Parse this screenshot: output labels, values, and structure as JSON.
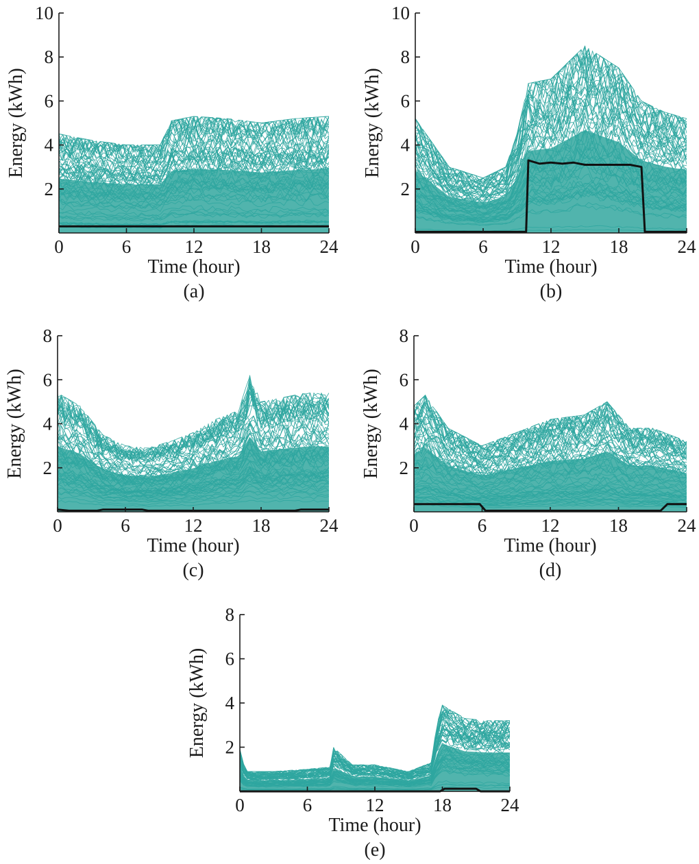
{
  "chart_data": [
    {
      "type": "line",
      "caption": "(a)",
      "xlabel": "Time (hour)",
      "ylabel": "Energy (kWh)",
      "xlim": [
        0,
        24
      ],
      "ylim": [
        0,
        10
      ],
      "xticks": [
        0,
        6,
        12,
        18,
        24
      ],
      "yticks": [
        2,
        4,
        6,
        8,
        10
      ],
      "grid": false,
      "colors": {
        "series_palette": [
          "#2a9a9c",
          "#36b39a",
          "#2e8fb0",
          "#4bb88a"
        ],
        "centroid": "#111111"
      },
      "series_envelope": {
        "x": [
          0,
          3,
          6,
          9,
          10,
          12,
          15,
          18,
          21,
          24
        ],
        "upper": [
          4.5,
          4.2,
          4.0,
          4.0,
          5.1,
          5.3,
          5.2,
          5.0,
          5.2,
          5.3
        ],
        "lower": [
          0,
          0,
          0,
          0,
          0,
          0,
          0,
          0,
          0,
          0
        ]
      },
      "centroid": {
        "x": [
          0,
          24
        ],
        "y": [
          0.3,
          0.3
        ]
      }
    },
    {
      "type": "line",
      "caption": "(b)",
      "xlabel": "Time (hour)",
      "ylabel": "Energy (kWh)",
      "xlim": [
        0,
        24
      ],
      "ylim": [
        0,
        10
      ],
      "xticks": [
        0,
        6,
        12,
        18,
        24
      ],
      "yticks": [
        2,
        4,
        6,
        8,
        10
      ],
      "grid": false,
      "colors": {
        "series_palette": [
          "#2a9a9c",
          "#36b39a",
          "#2e8fb0",
          "#4bb88a"
        ],
        "centroid": "#111111"
      },
      "series_envelope": {
        "x": [
          0,
          3,
          6,
          8,
          9,
          10,
          12,
          15,
          18,
          20,
          22,
          24
        ],
        "upper": [
          5.2,
          3.0,
          2.5,
          3.0,
          4.5,
          6.8,
          7.0,
          8.5,
          7.5,
          6.0,
          5.5,
          5.2
        ],
        "lower": [
          0,
          0,
          0,
          0,
          0,
          0,
          0,
          0,
          0,
          0,
          0,
          0
        ]
      },
      "centroid": {
        "x": [
          0,
          9.8,
          10.0,
          11,
          12,
          13,
          14,
          15,
          16,
          17,
          18,
          19,
          20.0,
          20.3,
          24
        ],
        "y": [
          0.05,
          0.05,
          3.3,
          3.15,
          3.2,
          3.15,
          3.2,
          3.1,
          3.1,
          3.1,
          3.1,
          3.1,
          3.0,
          0.05,
          0.05
        ]
      }
    },
    {
      "type": "line",
      "caption": "(c)",
      "xlabel": "Time (hour)",
      "ylabel": "Energy (kWh)",
      "xlim": [
        0,
        24
      ],
      "ylim": [
        0,
        8
      ],
      "xticks": [
        0,
        6,
        12,
        18,
        24
      ],
      "yticks": [
        2,
        4,
        6,
        8
      ],
      "grid": false,
      "colors": {
        "series_palette": [
          "#2a9a9c",
          "#36b39a",
          "#2e8fb0",
          "#4bb88a"
        ],
        "centroid": "#111111"
      },
      "series_envelope": {
        "x": [
          0,
          2,
          4,
          6,
          8,
          10,
          12,
          14,
          16,
          17,
          18,
          20,
          22,
          24
        ],
        "upper": [
          5.4,
          4.8,
          3.5,
          3.0,
          2.9,
          3.2,
          3.6,
          4.2,
          4.6,
          6.2,
          5.0,
          5.2,
          5.4,
          5.4
        ],
        "lower": [
          0,
          0,
          0,
          0,
          0,
          0,
          0,
          0,
          0,
          0,
          0,
          0,
          0,
          0
        ]
      },
      "centroid": {
        "x": [
          0,
          1,
          3.5,
          4,
          7.5,
          8,
          21,
          21.5,
          24
        ],
        "y": [
          0.1,
          0.05,
          0.05,
          0.1,
          0.1,
          0.05,
          0.05,
          0.1,
          0.1
        ]
      }
    },
    {
      "type": "line",
      "caption": "(d)",
      "xlabel": "Time (hour)",
      "ylabel": "Energy (kWh)",
      "xlim": [
        0,
        24
      ],
      "ylim": [
        0,
        8
      ],
      "xticks": [
        0,
        6,
        12,
        18,
        24
      ],
      "yticks": [
        2,
        4,
        6,
        8
      ],
      "grid": false,
      "colors": {
        "series_palette": [
          "#2a9a9c",
          "#36b39a",
          "#2e8fb0",
          "#4bb88a"
        ],
        "centroid": "#111111"
      },
      "series_envelope": {
        "x": [
          0,
          1,
          3,
          6,
          9,
          12,
          15,
          17,
          19,
          21,
          24
        ],
        "upper": [
          4.8,
          5.3,
          3.8,
          3.0,
          3.6,
          4.2,
          4.4,
          5.0,
          3.8,
          3.8,
          3.2
        ],
        "lower": [
          0,
          0,
          0,
          0,
          0,
          0,
          0,
          0,
          0,
          0,
          0
        ]
      },
      "centroid": {
        "x": [
          0,
          5.8,
          6.3,
          21.7,
          22.3,
          24
        ],
        "y": [
          0.35,
          0.35,
          0.05,
          0.05,
          0.35,
          0.35
        ]
      }
    },
    {
      "type": "line",
      "caption": "(e)",
      "xlabel": "Time (hour)",
      "ylabel": "Energy (kWh)",
      "xlim": [
        0,
        24
      ],
      "ylim": [
        0,
        8
      ],
      "xticks": [
        0,
        6,
        12,
        18,
        24
      ],
      "yticks": [
        2,
        4,
        6,
        8
      ],
      "grid": false,
      "colors": {
        "series_palette": [
          "#2a9a9c",
          "#36b39a",
          "#2e8fb0",
          "#4bb88a"
        ],
        "centroid": "#111111"
      },
      "series_envelope": {
        "x": [
          0,
          0.5,
          3,
          6,
          8,
          8.3,
          10,
          12,
          15,
          17,
          17.5,
          18,
          20,
          22,
          24
        ],
        "upper": [
          1.9,
          0.9,
          0.9,
          1.0,
          1.1,
          2.0,
          1.2,
          1.2,
          0.9,
          1.3,
          3.0,
          3.9,
          3.3,
          3.2,
          3.2
        ],
        "lower": [
          0,
          0,
          0,
          0,
          0,
          0,
          0,
          0,
          0,
          0,
          0,
          0,
          0,
          0,
          0
        ]
      },
      "centroid": {
        "x": [
          0,
          17.8,
          18.2,
          21.0,
          21.4,
          24
        ],
        "y": [
          0.0,
          0.0,
          0.12,
          0.12,
          0.0,
          0.0
        ]
      }
    }
  ]
}
